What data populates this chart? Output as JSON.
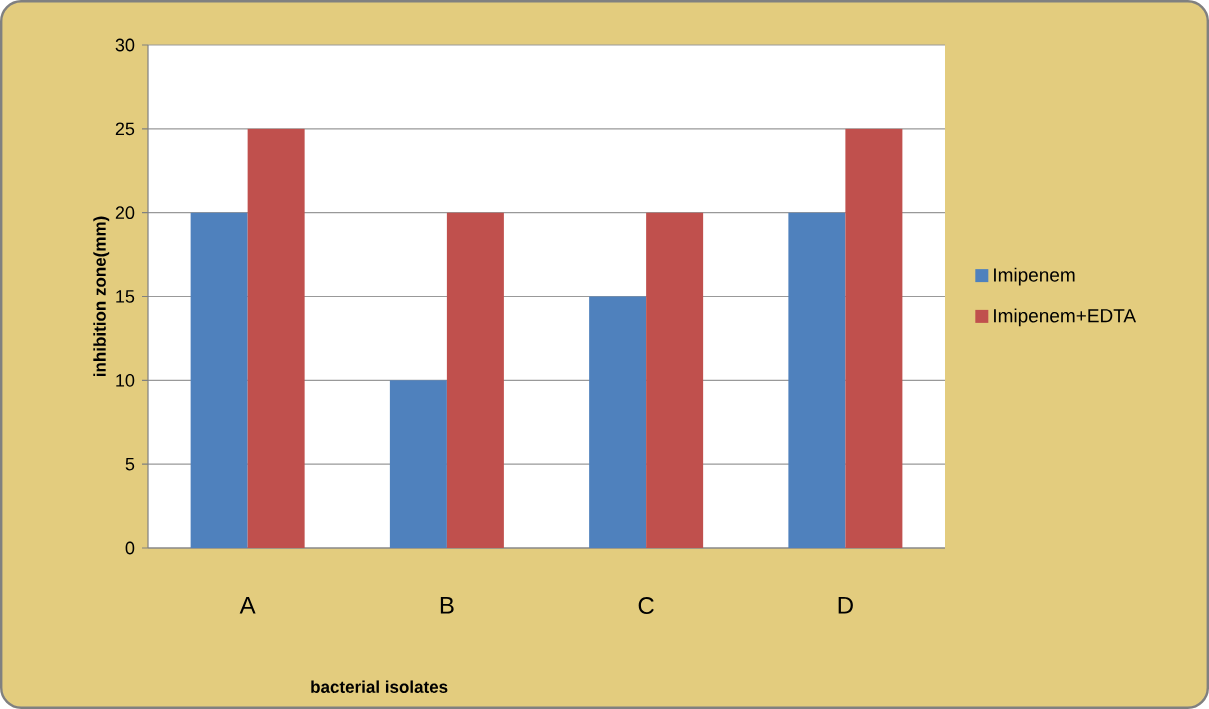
{
  "chart_data": {
    "type": "bar",
    "xlabel": "bacterial isolates",
    "ylabel": "inhibition zone(mm)",
    "categories": [
      "A",
      "B",
      "C",
      "D"
    ],
    "series": [
      {
        "name": "Imipenem",
        "color": "#4f81bd",
        "values": [
          20,
          10,
          15,
          20
        ]
      },
      {
        "name": "Imipenem+EDTA",
        "color": "#c0504d",
        "values": [
          25,
          20,
          20,
          25
        ]
      }
    ],
    "ylim": [
      0,
      30
    ],
    "yticks": [
      0,
      5,
      10,
      15,
      20,
      25,
      30
    ],
    "grid": "y",
    "legend": "right"
  }
}
